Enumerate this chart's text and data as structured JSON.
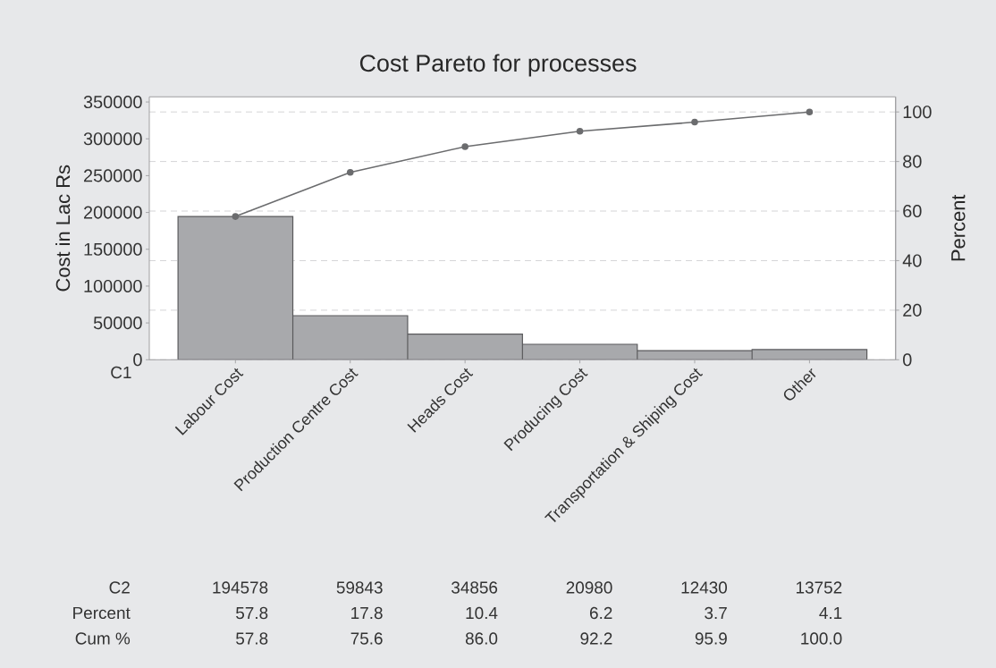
{
  "chart_data": {
    "type": "bar",
    "title": "Cost Pareto for processes",
    "xlabel": "C1",
    "ylabel": "Cost in Lac Rs",
    "y2label": "Percent",
    "categories": [
      "Labour Cost",
      "Production Centre Cost",
      "Heads Cost",
      "Producing Cost",
      "Transportation & Shiping Cost",
      "Other"
    ],
    "series": [
      {
        "color": "#a8a9ac",
        "values": [
          194578,
          59843,
          34856,
          20980,
          12430,
          13752
        ],
        "value_labels": [
          "194578",
          "59843",
          "34856",
          "20980",
          "12430",
          "13752"
        ]
      },
      {
        "type": "line",
        "axis": "y2",
        "color": "#6b6c6e",
        "marker": "circle",
        "values": [
          57.8,
          75.6,
          86.0,
          92.2,
          95.9,
          100.0
        ],
        "value_labels": [
          "57.8",
          "75.6",
          "86.0",
          "92.2",
          "95.9",
          "100.0"
        ]
      }
    ],
    "annotations": [
      "C2",
      "Percent",
      "Cum %",
      "57.8",
      "17.8",
      "10.4",
      "6.2",
      "3.7",
      "4.1"
    ],
    "ylim": [
      0,
      357000
    ],
    "yticks": [
      0,
      50000,
      100000,
      150000,
      200000,
      250000,
      300000,
      350000
    ],
    "y2lim": [
      0,
      106.1
    ],
    "y2ticks": [
      0,
      20,
      40,
      60,
      80,
      100
    ],
    "grid": "y2"
  }
}
